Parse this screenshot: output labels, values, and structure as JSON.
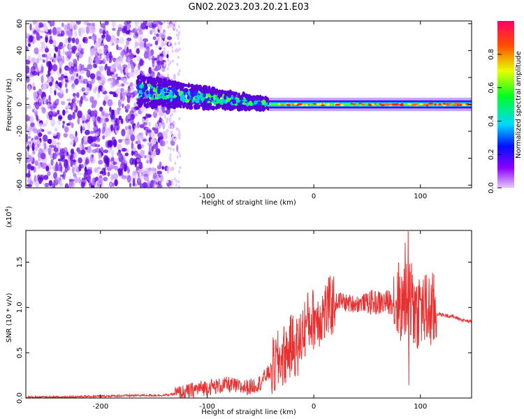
{
  "title": "GN02.2023.203.20.21.E03",
  "colors": {
    "snr_line": "#e83030",
    "spectrogram_low": "#7a20e8",
    "axis": "#000000",
    "colorbar": [
      "#cc00ff",
      "#0000ff",
      "#00e5ff",
      "#00ff00",
      "#ffff00",
      "#ff0000"
    ]
  },
  "chart_data": [
    {
      "type": "heatmap",
      "title": "GN02.2023.203.20.21.E03",
      "xlabel": "Height of straight line (km)",
      "ylabel": "Frequency (Hz)",
      "xlim": [
        -270,
        148
      ],
      "ylim": [
        -62,
        62
      ],
      "x_ticks": [
        -200,
        -100,
        0,
        100
      ],
      "y_ticks": [
        60,
        40,
        20,
        0,
        -20,
        -40,
        -60
      ],
      "colorbar": {
        "label": "Normalized spectral amplitude",
        "range": [
          0,
          1
        ],
        "ticks": [
          "0.0",
          "0.2",
          "0.4",
          "0.6",
          "0.8"
        ]
      }
    },
    {
      "type": "line",
      "xlabel": "Height of straight line (km)",
      "ylabel": "SNR (10 * v/v)",
      "scale_label": "(x10^4)",
      "xlim": [
        -270,
        148
      ],
      "ylim": [
        0,
        1.85
      ],
      "x_ticks": [
        -200,
        -100,
        0,
        100
      ],
      "y_ticks": [
        "0.0",
        "0.5",
        "1.0",
        "1.5"
      ],
      "series": [
        {
          "x": [
            -270,
            -240,
            -200,
            -160,
            -140,
            -120,
            -110,
            -100,
            -90,
            -80,
            -70,
            -60,
            -50,
            -45,
            -40,
            -35,
            -30,
            -25,
            -20,
            -15,
            -10,
            -5,
            0,
            5,
            10,
            15,
            20,
            25,
            30,
            40,
            50,
            60,
            70,
            80,
            85,
            90,
            95,
            100,
            105,
            110,
            115,
            120,
            130,
            140,
            148
          ],
          "y": [
            0.01,
            0.01,
            0.02,
            0.03,
            0.03,
            0.06,
            0.1,
            0.12,
            0.13,
            0.15,
            0.12,
            0.12,
            0.17,
            0.25,
            0.3,
            0.38,
            0.45,
            0.5,
            0.6,
            0.55,
            0.75,
            0.85,
            0.88,
            0.9,
            0.95,
            1.0,
            1.05,
            1.08,
            1.05,
            1.04,
            1.06,
            1.05,
            1.06,
            1.08,
            1.0,
            1.1,
            0.95,
            1.0,
            0.95,
            0.96,
            0.93,
            0.92,
            0.9,
            0.86,
            0.84
          ]
        }
      ]
    }
  ]
}
